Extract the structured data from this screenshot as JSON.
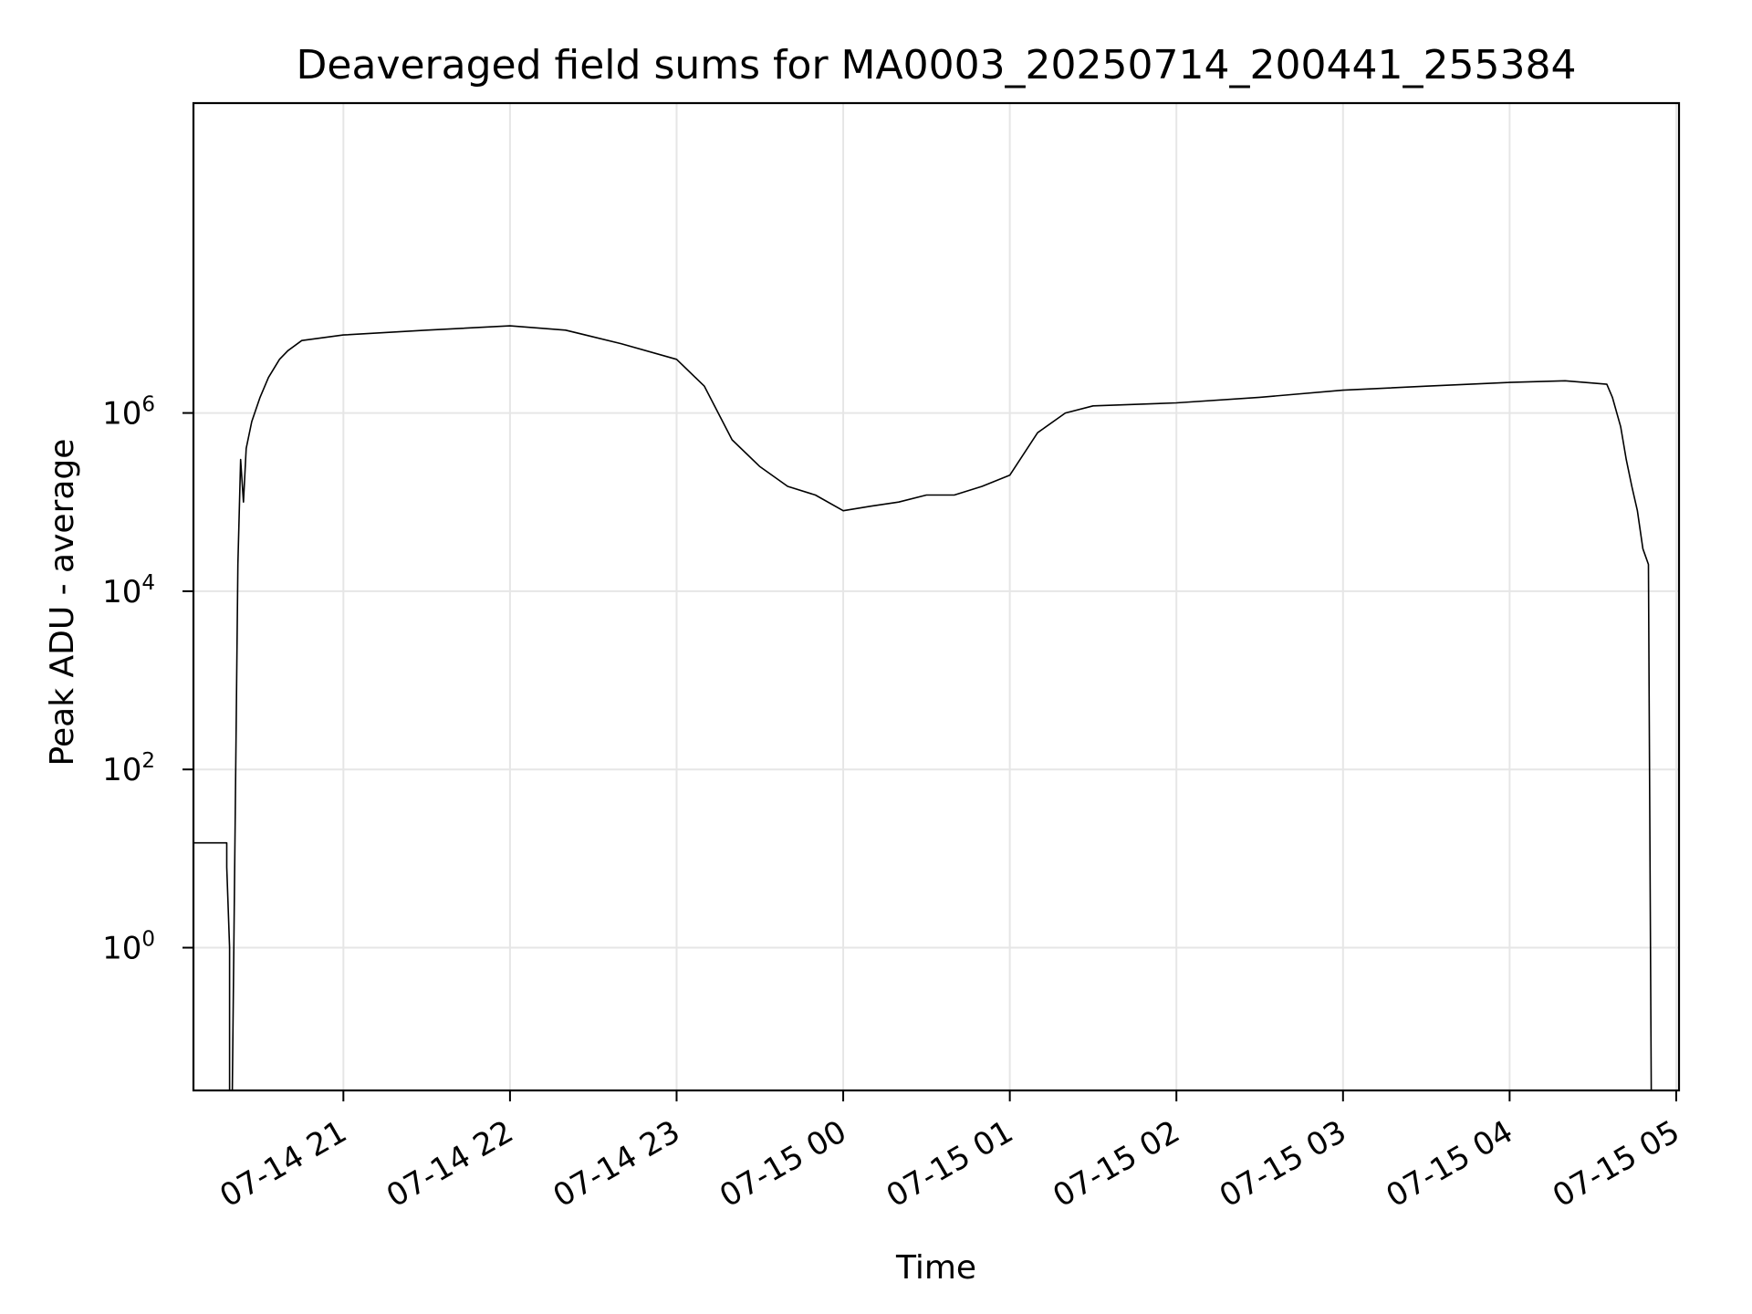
{
  "chart_data": {
    "type": "line",
    "title": "Deaveraged field sums for MA0003_20250714_200441_255384",
    "xlabel": "Time",
    "ylabel": "Peak ADU - average",
    "yscale": "log",
    "grid": true,
    "line_color": "#000000",
    "grid_color": "#e6e6e6",
    "xlim": [
      "2025-07-14 20:06",
      "2025-07-15 05:01"
    ],
    "ylim": [
      0.025,
      3000000000
    ],
    "x_ticks": [
      {
        "value": "2025-07-14 21:00",
        "label": "07-14 21"
      },
      {
        "value": "2025-07-14 22:00",
        "label": "07-14 22"
      },
      {
        "value": "2025-07-14 23:00",
        "label": "07-14 23"
      },
      {
        "value": "2025-07-15 00:00",
        "label": "07-15 00"
      },
      {
        "value": "2025-07-15 01:00",
        "label": "07-15 01"
      },
      {
        "value": "2025-07-15 02:00",
        "label": "07-15 02"
      },
      {
        "value": "2025-07-15 03:00",
        "label": "07-15 03"
      },
      {
        "value": "2025-07-15 04:00",
        "label": "07-15 04"
      },
      {
        "value": "2025-07-15 05:00",
        "label": "07-15 05"
      }
    ],
    "y_ticks": [
      {
        "value": 1,
        "base": "10",
        "exp": "0"
      },
      {
        "value": 100,
        "base": "10",
        "exp": "2"
      },
      {
        "value": 10000,
        "base": "10",
        "exp": "4"
      },
      {
        "value": 1000000,
        "base": "10",
        "exp": "6"
      }
    ],
    "series": [
      {
        "x": [
          "2025-07-14 20:06",
          "2025-07-14 20:18",
          "2025-07-14 20:18",
          "2025-07-14 20:19",
          "2025-07-14 20:19",
          "2025-07-14 20:20",
          "2025-07-14 20:22",
          "2025-07-14 20:23",
          "2025-07-14 20:24",
          "2025-07-14 20:25",
          "2025-07-14 20:27",
          "2025-07-14 20:30",
          "2025-07-14 20:33",
          "2025-07-14 20:37",
          "2025-07-14 20:40",
          "2025-07-14 20:45",
          "2025-07-14 21:00",
          "2025-07-14 21:30",
          "2025-07-14 22:00",
          "2025-07-14 22:20",
          "2025-07-14 22:40",
          "2025-07-14 23:00",
          "2025-07-14 23:10",
          "2025-07-14 23:20",
          "2025-07-14 23:30",
          "2025-07-14 23:40",
          "2025-07-14 23:50",
          "2025-07-15 00:00",
          "2025-07-15 00:10",
          "2025-07-15 00:20",
          "2025-07-15 00:30",
          "2025-07-15 00:40",
          "2025-07-15 00:50",
          "2025-07-15 01:00",
          "2025-07-15 01:10",
          "2025-07-15 01:20",
          "2025-07-15 01:30",
          "2025-07-15 02:00",
          "2025-07-15 02:30",
          "2025-07-15 03:00",
          "2025-07-15 03:30",
          "2025-07-15 04:00",
          "2025-07-15 04:20",
          "2025-07-15 04:35",
          "2025-07-15 04:37",
          "2025-07-15 04:40",
          "2025-07-15 04:42",
          "2025-07-15 04:44",
          "2025-07-15 04:46",
          "2025-07-15 04:48",
          "2025-07-15 04:50",
          "2025-07-15 04:51"
        ],
        "y": [
          15,
          15,
          8,
          1,
          0.025,
          0.025,
          20000,
          300000,
          100000,
          400000,
          800000,
          1500000,
          2500000,
          4000000,
          5000000,
          6500000,
          7500000,
          8500000,
          9500000,
          8500000,
          6000000,
          4000000,
          2000000,
          500000,
          250000,
          150000,
          120000,
          80000,
          90000,
          100000,
          120000,
          120000,
          150000,
          200000,
          600000,
          1000000,
          1200000,
          1300000,
          1500000,
          1800000,
          2000000,
          2200000,
          2300000,
          2100000,
          1500000,
          700000,
          300000,
          150000,
          80000,
          30000,
          20000,
          0.025
        ]
      }
    ]
  }
}
